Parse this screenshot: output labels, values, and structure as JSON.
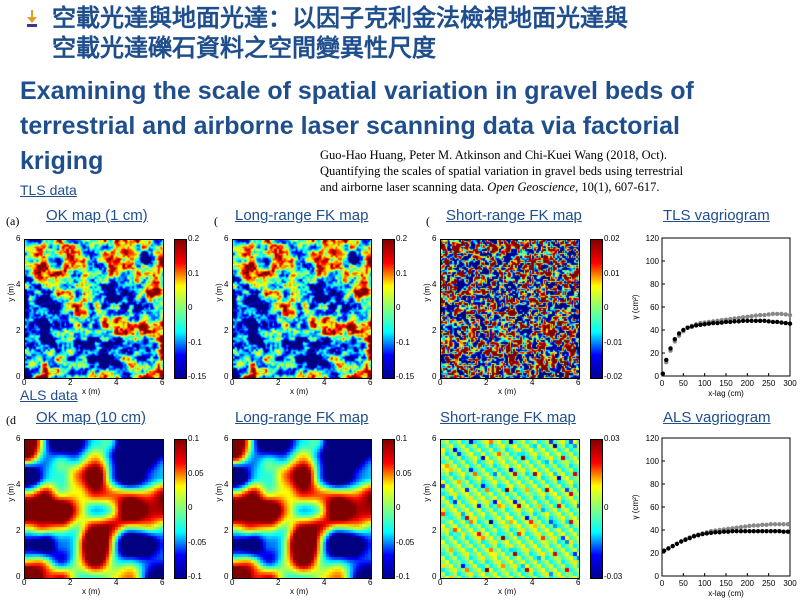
{
  "title_zh": [
    "空載光達與地面光達：以因子克利金法檢視地面光達與",
    "空載光達礫石資料之空間變異性尺度"
  ],
  "title_en": [
    "Examining the scale of spatial variation in gravel beds of",
    "terrestrial and airborne laser scanning data via factorial",
    "kriging"
  ],
  "citation": {
    "line1": "Guo-Hao Huang, Peter M. Atkinson and Chi-Kuei Wang (2018, Oct).",
    "line2": "Quantifying the scales of spatial variation in gravel beds using terrestrial",
    "line3_pre": "and airborne laser scanning data. ",
    "journal": "Open Geoscience",
    "line3_post": ", 10(1), 607-617."
  },
  "sections": {
    "tls": "TLS data",
    "als": "ALS data"
  },
  "panel_letters": {
    "a": "(a)",
    "b": "(",
    "c": "(",
    "d": "(d"
  },
  "tls_labels": [
    "OK map (1 cm)",
    "Long-range  FK map",
    "Short-range  FK map",
    "TLS vagriogram"
  ],
  "als_labels": [
    "OK map (10 cm)",
    "Long-range  FK map",
    "Short-range  FK map",
    "ALS vagriogram"
  ],
  "map_axes": {
    "xlabel": "x (m)",
    "ylabel": "y (m)",
    "ticks": [
      "0",
      "2",
      "4",
      "6"
    ]
  },
  "colorbars": {
    "tls_ok": [
      "0.2",
      "0.1",
      "0",
      "-0.1",
      "-0.15"
    ],
    "tls_long": [
      "0.2",
      "0.1",
      "0",
      "-0.1",
      "-0.15"
    ],
    "tls_short": [
      "0.02",
      "0.01",
      "0",
      "-0.01",
      "-0.02"
    ],
    "als_ok": [
      "0.1",
      "0.05",
      "0",
      "-0.05",
      "-0.1"
    ],
    "als_long": [
      "0.1",
      "0.05",
      "0",
      "-0.05",
      "-0.1"
    ],
    "als_short": [
      "0.03",
      "0",
      "-0.03"
    ]
  },
  "chart_data": [
    {
      "type": "scatter",
      "title": "TLS vagriogram",
      "xlabel": "x-lag (cm)",
      "ylabel": "γ (cm²)",
      "xlim": [
        0,
        300
      ],
      "ylim": [
        0,
        120
      ],
      "xticks": [
        0,
        50,
        100,
        150,
        200,
        250,
        300
      ],
      "yticks": [
        0,
        20,
        40,
        60,
        80,
        100,
        120
      ],
      "series": [
        {
          "color": "#888888",
          "x": [
            2,
            10,
            20,
            30,
            40,
            50,
            60,
            70,
            80,
            90,
            100,
            110,
            120,
            130,
            140,
            150,
            160,
            170,
            180,
            190,
            200,
            210,
            220,
            230,
            240,
            250,
            260,
            270,
            280,
            290,
            300
          ],
          "y": [
            2,
            12,
            22,
            30,
            35,
            39,
            42,
            43.5,
            45,
            46,
            46.5,
            47,
            47.5,
            48,
            48.5,
            49,
            49.5,
            50,
            50.5,
            51,
            51.5,
            52,
            52.5,
            53,
            53,
            53.5,
            54,
            54,
            54,
            53.5,
            53
          ]
        },
        {
          "color": "#000000",
          "x": [
            2,
            10,
            20,
            30,
            40,
            50,
            60,
            70,
            80,
            90,
            100,
            110,
            120,
            130,
            140,
            150,
            160,
            170,
            180,
            190,
            200,
            210,
            220,
            230,
            240,
            250,
            260,
            270,
            280,
            290,
            300
          ],
          "y": [
            2,
            14,
            24,
            32,
            37,
            40,
            42,
            43,
            44,
            44.5,
            45,
            45.5,
            46,
            46,
            46.5,
            47,
            47,
            47.5,
            47.5,
            48,
            48,
            48,
            48,
            48,
            48,
            47.5,
            47,
            47,
            46.5,
            46,
            45.5
          ]
        }
      ]
    },
    {
      "type": "scatter",
      "title": "ALS vagriogram",
      "xlabel": "x-lag (cm)",
      "ylabel": "γ (cm²)",
      "xlim": [
        0,
        300
      ],
      "ylim": [
        0,
        120
      ],
      "xticks": [
        0,
        50,
        100,
        150,
        200,
        250,
        300
      ],
      "yticks": [
        0,
        20,
        40,
        60,
        80,
        100,
        120
      ],
      "series": [
        {
          "color": "#888888",
          "x": [
            5,
            15,
            25,
            35,
            45,
            55,
            65,
            75,
            85,
            95,
            105,
            115,
            125,
            135,
            145,
            155,
            165,
            175,
            185,
            195,
            205,
            215,
            225,
            235,
            245,
            255,
            265,
            275,
            285,
            295
          ],
          "y": [
            22,
            24,
            26,
            28,
            30,
            32,
            33.5,
            35,
            36,
            37,
            38,
            39,
            39.5,
            40,
            40.5,
            41,
            41.5,
            42,
            42.5,
            43,
            43.5,
            44,
            44,
            44.5,
            44.5,
            45,
            45,
            45,
            45,
            45
          ]
        },
        {
          "color": "#000000",
          "x": [
            5,
            15,
            25,
            35,
            45,
            55,
            65,
            75,
            85,
            95,
            105,
            115,
            125,
            135,
            145,
            155,
            165,
            175,
            185,
            195,
            205,
            215,
            225,
            235,
            245,
            255,
            265,
            275,
            285,
            295
          ],
          "y": [
            22,
            24,
            26,
            28,
            30,
            31.5,
            33,
            34.5,
            35.5,
            36.5,
            37,
            37.5,
            38,
            38,
            38.5,
            38.5,
            39,
            39,
            39,
            39,
            39,
            39,
            39,
            39,
            39,
            39,
            39,
            39,
            38.5,
            38.5
          ]
        }
      ]
    }
  ]
}
